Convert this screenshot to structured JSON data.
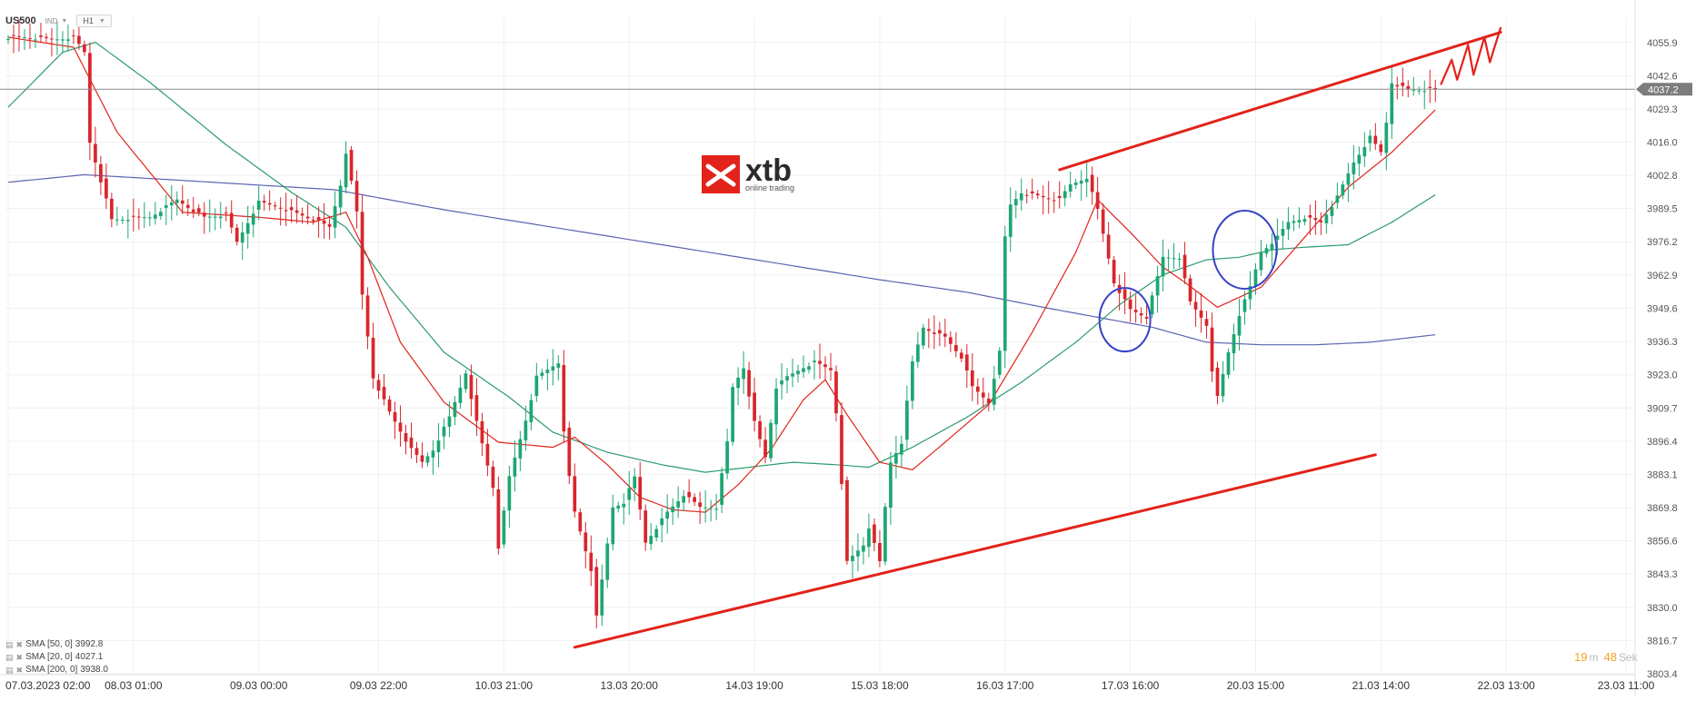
{
  "header": {
    "symbol": "US500",
    "instrument_type": "IND",
    "timeframe": "H1"
  },
  "logo": {
    "brand": "xtb",
    "tagline": "online trading",
    "color": "#e2231a"
  },
  "indicators": [
    {
      "label": "SMA [50, 0]",
      "value": "3992.8",
      "color": "#2c9a6c"
    },
    {
      "label": "SMA [20, 0]",
      "value": "4027.1",
      "color": "#e2231a"
    },
    {
      "label": "SMA [200, 0]",
      "value": "3938.0",
      "color": "#5c64b0"
    }
  ],
  "countdown": {
    "minutes": "19",
    "minutes_unit": "m",
    "seconds": "48",
    "seconds_unit": "Sek"
  },
  "current_price": {
    "label": "4037.2",
    "value": 4037.2
  },
  "chart_data": {
    "type": "candlestick",
    "ylim": [
      3803.4,
      4062.0
    ],
    "y_ticks": [
      "4055.9",
      "4042.6",
      "4029.3",
      "4016.0",
      "4002.8",
      "3989.5",
      "3976.2",
      "3962.9",
      "3949.6",
      "3936.3",
      "3923.0",
      "3909.7",
      "3896.4",
      "3883.1",
      "3869.8",
      "3856.6",
      "3843.3",
      "3830.0",
      "3816.7",
      "3803.4"
    ],
    "x_ticks": [
      {
        "label": "07.03.2023  02:00",
        "index": 0
      },
      {
        "label": "08.03  01:00",
        "index": 23
      },
      {
        "label": "09.03  00:00",
        "index": 46
      },
      {
        "label": "09.03  22:00",
        "index": 68
      },
      {
        "label": "10.03  21:00",
        "index": 91
      },
      {
        "label": "13.03  20:00",
        "index": 114
      },
      {
        "label": "14.03  19:00",
        "index": 137
      },
      {
        "label": "15.03  18:00",
        "index": 160
      },
      {
        "label": "16.03  17:00",
        "index": 183
      },
      {
        "label": "17.03  16:00",
        "index": 206
      },
      {
        "label": "20.03  15:00",
        "index": 229
      },
      {
        "label": "21.03  14:00",
        "index": 252
      },
      {
        "label": "22.03  13:00",
        "index": 275
      },
      {
        "label": "23.03  11:00",
        "index": 297
      }
    ],
    "anchors": [
      [
        0,
        4058
      ],
      [
        3,
        4058
      ],
      [
        8,
        4057
      ],
      [
        12,
        4058
      ],
      [
        14,
        4052
      ],
      [
        15,
        4016
      ],
      [
        18,
        3993
      ],
      [
        19,
        3985
      ],
      [
        26,
        3986
      ],
      [
        31,
        3993
      ],
      [
        36,
        3986
      ],
      [
        40,
        3987
      ],
      [
        42,
        3976
      ],
      [
        46,
        3992
      ],
      [
        50,
        3990
      ],
      [
        56,
        3985
      ],
      [
        59,
        3982
      ],
      [
        61,
        3999
      ],
      [
        62,
        4012
      ],
      [
        64,
        3988
      ],
      [
        65,
        3955
      ],
      [
        67,
        3922
      ],
      [
        70,
        3908
      ],
      [
        74,
        3893
      ],
      [
        76,
        3888
      ],
      [
        78,
        3893
      ],
      [
        81,
        3906
      ],
      [
        84,
        3924
      ],
      [
        86,
        3904
      ],
      [
        89,
        3878
      ],
      [
        90,
        3854
      ],
      [
        92,
        3882
      ],
      [
        95,
        3905
      ],
      [
        97,
        3922
      ],
      [
        101,
        3928
      ],
      [
        102,
        3901
      ],
      [
        103,
        3882
      ],
      [
        104,
        3868
      ],
      [
        107,
        3845
      ],
      [
        108,
        3826
      ],
      [
        111,
        3870
      ],
      [
        113,
        3872
      ],
      [
        115,
        3882
      ],
      [
        117,
        3856
      ],
      [
        121,
        3868
      ],
      [
        124,
        3875
      ],
      [
        127,
        3870
      ],
      [
        130,
        3870
      ],
      [
        132,
        3896
      ],
      [
        133,
        3918
      ],
      [
        135,
        3926
      ],
      [
        137,
        3904
      ],
      [
        139,
        3890
      ],
      [
        141,
        3918
      ],
      [
        143,
        3922
      ],
      [
        146,
        3926
      ],
      [
        148,
        3928
      ],
      [
        151,
        3925
      ],
      [
        152,
        3908
      ],
      [
        153,
        3880
      ],
      [
        154,
        3848
      ],
      [
        157,
        3855
      ],
      [
        158,
        3862
      ],
      [
        160,
        3848
      ],
      [
        161,
        3870
      ],
      [
        162,
        3888
      ],
      [
        164,
        3896
      ],
      [
        166,
        3928
      ],
      [
        168,
        3942
      ],
      [
        172,
        3938
      ],
      [
        175,
        3930
      ],
      [
        177,
        3918
      ],
      [
        180,
        3912
      ],
      [
        182,
        3932
      ],
      [
        183,
        3978
      ],
      [
        184,
        3991
      ],
      [
        186,
        3996
      ],
      [
        190,
        3994
      ],
      [
        193,
        3993
      ],
      [
        195,
        3999
      ],
      [
        198,
        4002
      ],
      [
        200,
        3989
      ],
      [
        203,
        3960
      ],
      [
        206,
        3949
      ],
      [
        209,
        3946
      ],
      [
        212,
        3970
      ],
      [
        215,
        3970
      ],
      [
        217,
        3952
      ],
      [
        220,
        3943
      ],
      [
        221,
        3925
      ],
      [
        222,
        3914
      ],
      [
        224,
        3932
      ],
      [
        226,
        3947
      ],
      [
        228,
        3958
      ],
      [
        230,
        3972
      ],
      [
        233,
        3978
      ],
      [
        235,
        3984
      ],
      [
        238,
        3986
      ],
      [
        241,
        3984
      ],
      [
        244,
        3994
      ],
      [
        247,
        4008
      ],
      [
        250,
        4018
      ],
      [
        252,
        4012
      ],
      [
        253,
        4024
      ],
      [
        254,
        4040
      ],
      [
        257,
        4037
      ],
      [
        262,
        4037
      ]
    ],
    "sma20": [
      [
        0,
        4058
      ],
      [
        12,
        4054
      ],
      [
        20,
        4020
      ],
      [
        32,
        3988
      ],
      [
        46,
        3986
      ],
      [
        56,
        3984
      ],
      [
        62,
        3988
      ],
      [
        66,
        3970
      ],
      [
        72,
        3936
      ],
      [
        80,
        3912
      ],
      [
        90,
        3896
      ],
      [
        100,
        3894
      ],
      [
        104,
        3898
      ],
      [
        110,
        3887
      ],
      [
        116,
        3874
      ],
      [
        122,
        3869
      ],
      [
        128,
        3868
      ],
      [
        134,
        3879
      ],
      [
        140,
        3893
      ],
      [
        146,
        3913
      ],
      [
        150,
        3921
      ],
      [
        154,
        3907
      ],
      [
        160,
        3888
      ],
      [
        166,
        3885
      ],
      [
        172,
        3896
      ],
      [
        180,
        3911
      ],
      [
        188,
        3940
      ],
      [
        196,
        3972
      ],
      [
        200,
        3993
      ],
      [
        206,
        3980
      ],
      [
        212,
        3966
      ],
      [
        216,
        3960
      ],
      [
        222,
        3950
      ],
      [
        230,
        3958
      ],
      [
        238,
        3978
      ],
      [
        246,
        3998
      ],
      [
        254,
        4012
      ],
      [
        262,
        4029
      ]
    ],
    "sma50": [
      [
        0,
        4030
      ],
      [
        10,
        4052
      ],
      [
        16,
        4056
      ],
      [
        26,
        4040
      ],
      [
        40,
        4015
      ],
      [
        52,
        3996
      ],
      [
        62,
        3982
      ],
      [
        70,
        3958
      ],
      [
        80,
        3932
      ],
      [
        92,
        3914
      ],
      [
        100,
        3900
      ],
      [
        110,
        3892
      ],
      [
        120,
        3887
      ],
      [
        128,
        3884
      ],
      [
        136,
        3886
      ],
      [
        144,
        3888
      ],
      [
        152,
        3887
      ],
      [
        158,
        3886
      ],
      [
        166,
        3894
      ],
      [
        176,
        3906
      ],
      [
        186,
        3920
      ],
      [
        196,
        3936
      ],
      [
        204,
        3951
      ],
      [
        212,
        3963
      ],
      [
        220,
        3969
      ],
      [
        226,
        3970
      ],
      [
        232,
        3973
      ],
      [
        238,
        3974
      ],
      [
        246,
        3975
      ],
      [
        254,
        3984
      ],
      [
        262,
        3995
      ]
    ],
    "sma200": [
      [
        0,
        4000
      ],
      [
        14,
        4003
      ],
      [
        30,
        4001
      ],
      [
        60,
        3997
      ],
      [
        80,
        3989
      ],
      [
        100,
        3982
      ],
      [
        120,
        3975
      ],
      [
        140,
        3968
      ],
      [
        160,
        3961
      ],
      [
        176,
        3956
      ],
      [
        190,
        3950
      ],
      [
        200,
        3946
      ],
      [
        210,
        3942
      ],
      [
        220,
        3936
      ],
      [
        230,
        3935
      ],
      [
        240,
        3935
      ],
      [
        250,
        3936
      ],
      [
        262,
        3939
      ]
    ]
  },
  "annotations": {
    "channel_color": "#e2231a",
    "circle_color": "#3742c6"
  }
}
